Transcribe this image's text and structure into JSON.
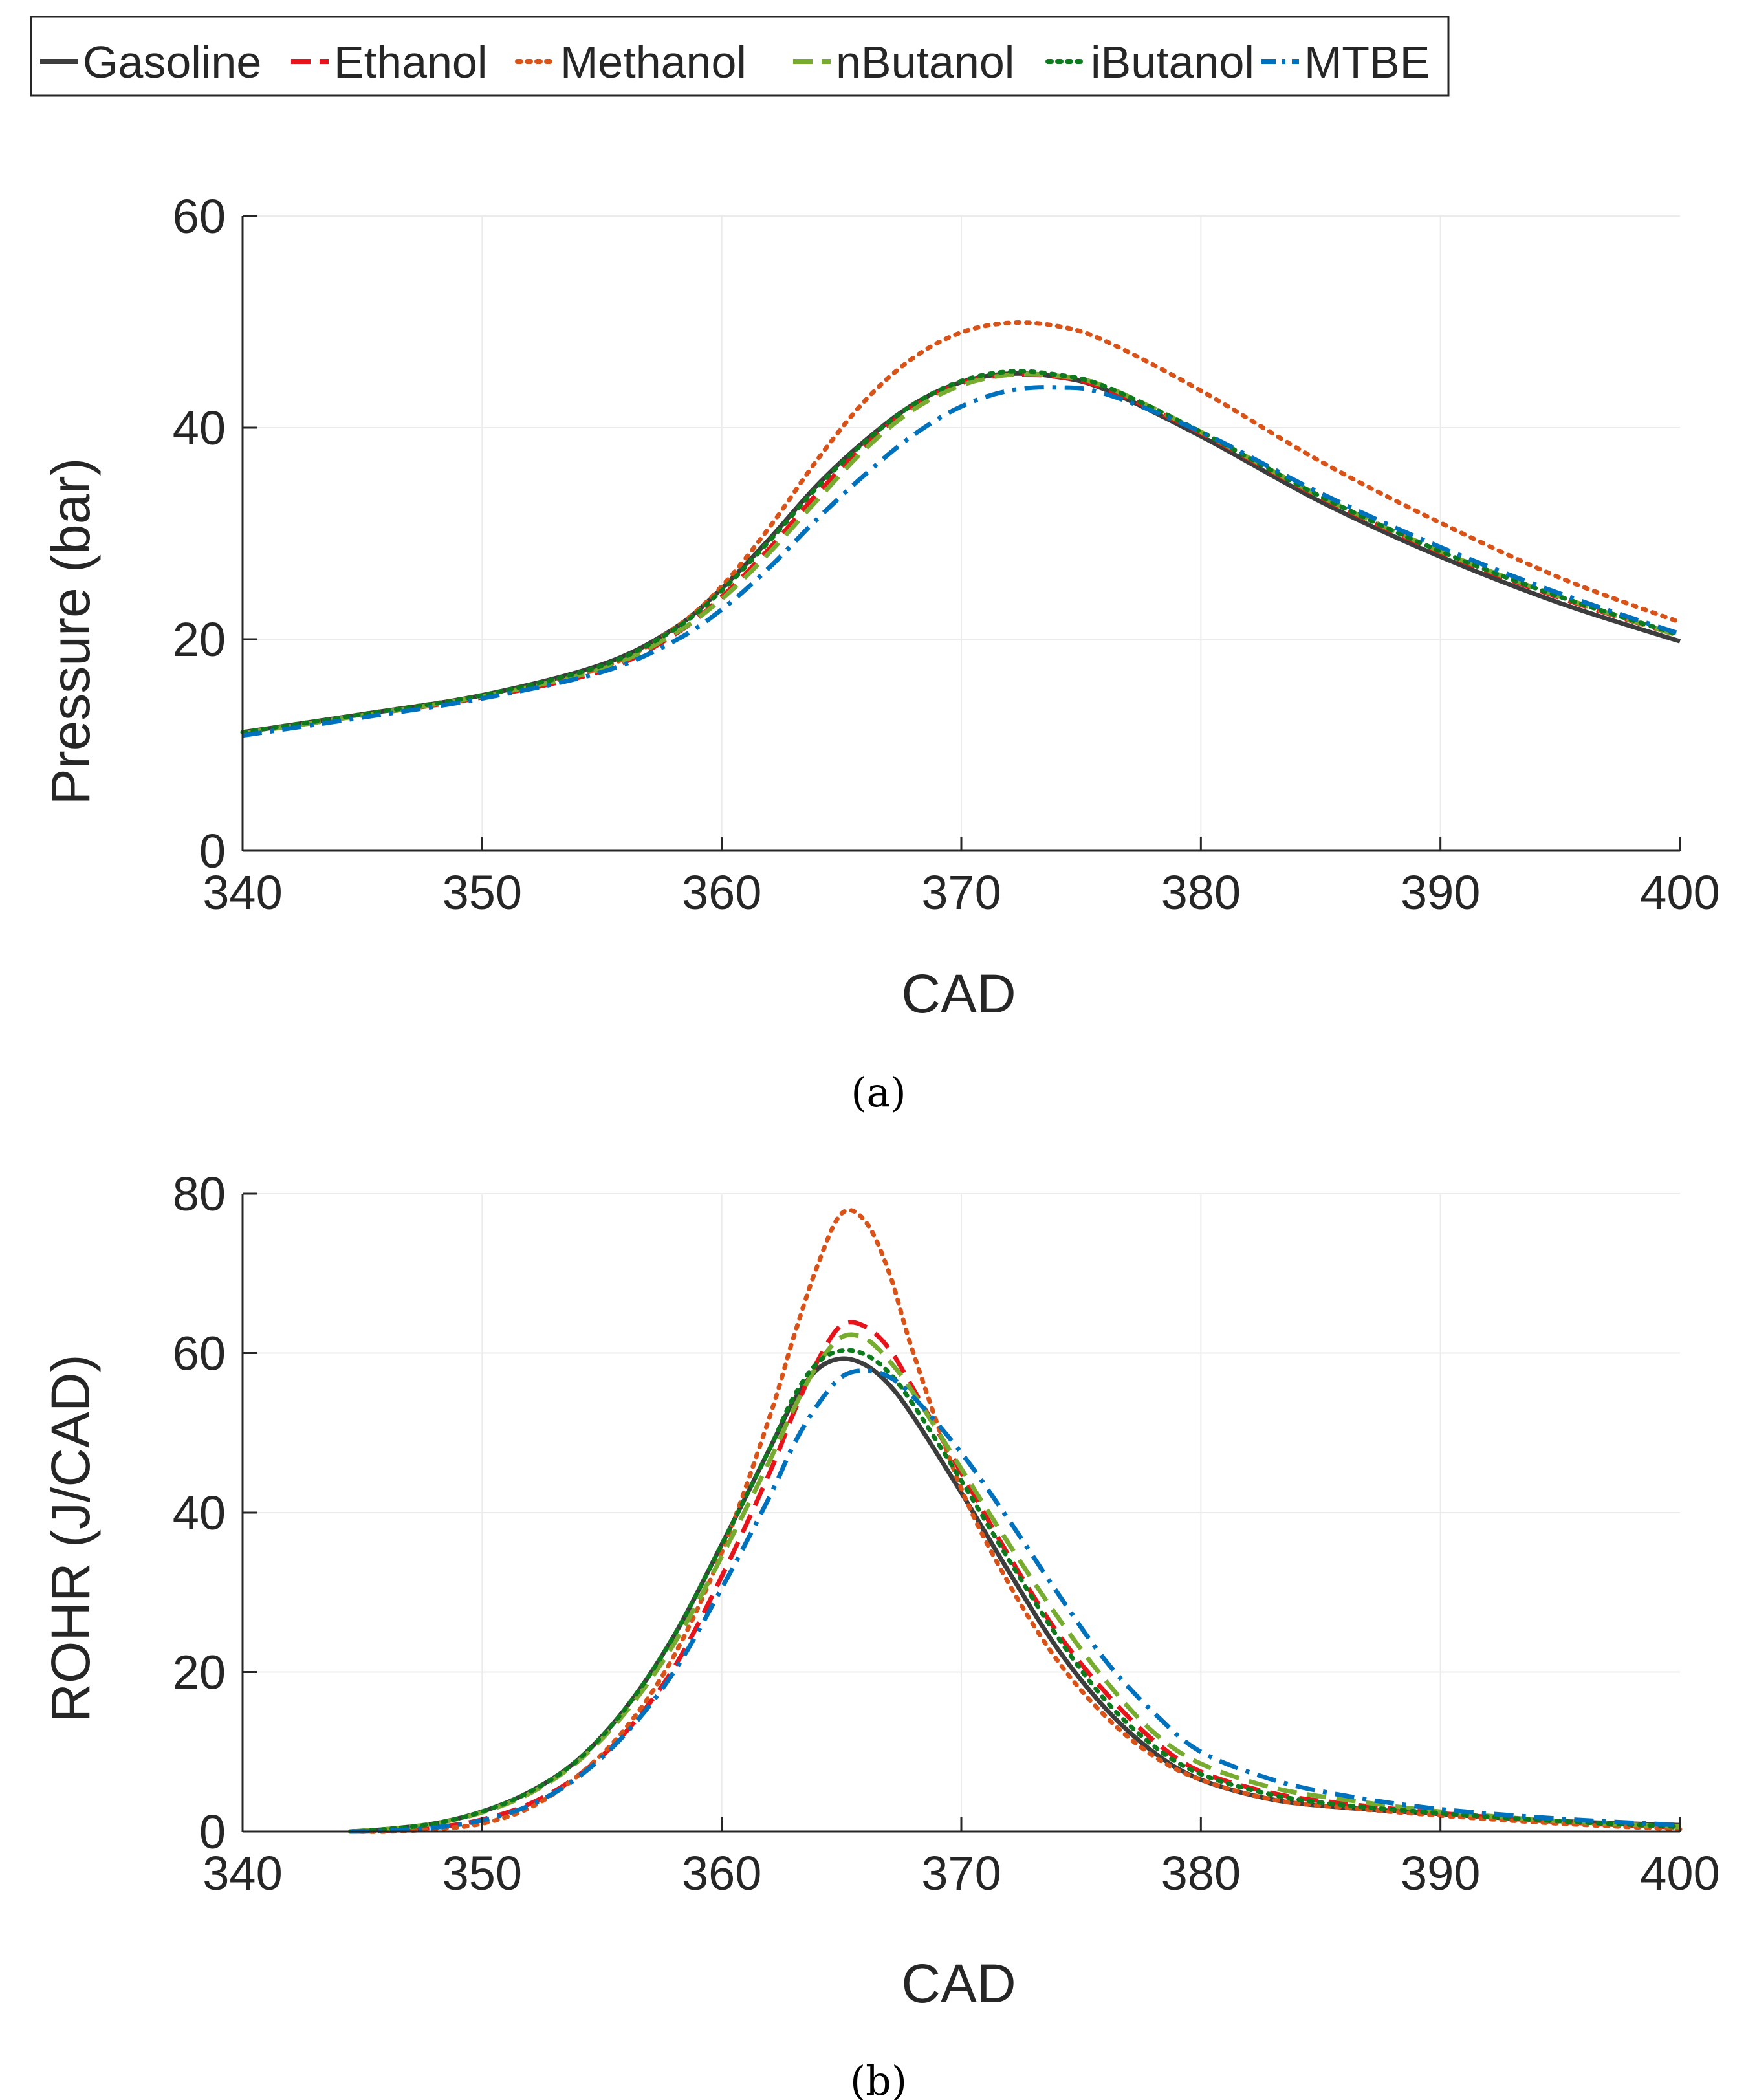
{
  "legend": {
    "entries": [
      {
        "name": "Gasoline",
        "color": "#3d3d3d",
        "dash": "solid"
      },
      {
        "name": "Ethanol",
        "color": "#e8141b",
        "dash": "dashed"
      },
      {
        "name": "Methanol",
        "color": "#d95319",
        "dash": "dotted"
      },
      {
        "name": "nButanol",
        "color": "#77ac30",
        "dash": "dashed"
      },
      {
        "name": "iButanol",
        "color": "#0e7a1e",
        "dash": "dotted"
      },
      {
        "name": "MTBE",
        "color": "#0072bd",
        "dash": "dashdot"
      }
    ]
  },
  "chart_data": [
    {
      "type": "line",
      "caption": "(a)",
      "title": "",
      "xlabel": "CAD",
      "ylabel": "Pressure (bar)",
      "xlim": [
        340,
        400
      ],
      "ylim": [
        0,
        60
      ],
      "xticks": [
        340,
        350,
        360,
        370,
        380,
        390,
        400
      ],
      "yticks": [
        0,
        20,
        40,
        60
      ],
      "grid": true,
      "x": [
        340,
        345,
        350,
        355,
        358,
        360,
        362,
        364,
        366,
        368,
        370,
        372,
        374,
        376,
        380,
        385,
        390,
        395,
        400
      ],
      "series": [
        {
          "name": "Gasoline",
          "values": [
            11.2,
            12.9,
            14.7,
            17.6,
            21.0,
            24.8,
            29.5,
            34.6,
            38.8,
            42.2,
            44.3,
            45.1,
            44.8,
            43.6,
            39.2,
            33.0,
            27.8,
            23.4,
            19.8
          ]
        },
        {
          "name": "Ethanol",
          "values": [
            11.1,
            12.8,
            14.5,
            17.0,
            20.4,
            24.0,
            28.6,
            33.8,
            38.4,
            42.0,
            44.2,
            45.0,
            44.8,
            43.7,
            39.5,
            33.4,
            28.2,
            23.9,
            20.3
          ]
        },
        {
          "name": "Methanol",
          "values": [
            11.2,
            12.9,
            14.7,
            17.3,
            21.0,
            25.0,
            30.6,
            37.0,
            42.6,
            46.6,
            49.0,
            49.9,
            49.6,
            48.2,
            43.5,
            36.8,
            31.0,
            25.8,
            21.6
          ]
        },
        {
          "name": "nButanol",
          "values": [
            11.1,
            12.8,
            14.6,
            17.2,
            20.5,
            23.8,
            28.2,
            33.2,
            38.0,
            41.7,
            44.0,
            45.0,
            44.9,
            43.9,
            39.6,
            33.5,
            28.3,
            24.0,
            20.3
          ]
        },
        {
          "name": "iButanol",
          "values": [
            11.2,
            12.9,
            14.7,
            17.5,
            20.9,
            24.6,
            29.3,
            34.4,
            38.7,
            42.2,
            44.4,
            45.3,
            45.0,
            43.9,
            39.6,
            33.5,
            28.3,
            24.0,
            20.4
          ]
        },
        {
          "name": "MTBE",
          "values": [
            10.9,
            12.6,
            14.4,
            16.9,
            19.8,
            22.8,
            26.8,
            31.4,
            35.6,
            39.3,
            42.0,
            43.5,
            43.8,
            43.2,
            39.6,
            33.8,
            28.7,
            24.3,
            20.5
          ]
        }
      ]
    },
    {
      "type": "line",
      "caption": "(b)",
      "title": "",
      "xlabel": "CAD",
      "ylabel": "ROHR (J/CAD)",
      "xlim": [
        340,
        400
      ],
      "ylim": [
        0,
        80
      ],
      "xticks": [
        340,
        350,
        360,
        370,
        380,
        390,
        400
      ],
      "yticks": [
        0,
        20,
        40,
        60,
        80
      ],
      "grid": true,
      "x": [
        344.5,
        346,
        348,
        350,
        352,
        354,
        356,
        358,
        360,
        362,
        363,
        364,
        365,
        366,
        367,
        368,
        370,
        372,
        374,
        376,
        378,
        380,
        383,
        386,
        390,
        395,
        400
      ],
      "series": [
        {
          "name": "Gasoline",
          "values": [
            0,
            0.3,
            1.0,
            2.5,
            5.0,
            9.0,
            15.5,
            24.5,
            36.0,
            48.0,
            54.0,
            58.0,
            59.3,
            58.5,
            56.0,
            52.0,
            42.5,
            32.5,
            23.0,
            15.5,
            10.0,
            6.5,
            4.0,
            3.0,
            2.2,
            1.3,
            0.8
          ]
        },
        {
          "name": "Ethanol",
          "values": [
            0,
            0.1,
            0.5,
            1.5,
            3.5,
            7.0,
            12.5,
            20.5,
            32.0,
            45.0,
            52.5,
            59.0,
            63.5,
            63.3,
            60.5,
            55.5,
            45.0,
            34.5,
            25.0,
            17.5,
            11.5,
            7.5,
            4.8,
            3.5,
            2.3,
            1.2,
            0.5
          ]
        },
        {
          "name": "Methanol",
          "values": [
            0,
            0.0,
            0.3,
            1.0,
            3.0,
            7.0,
            13.0,
            22.0,
            35.0,
            52.0,
            62.0,
            71.0,
            77.5,
            76.5,
            70.0,
            60.0,
            43.0,
            31.0,
            21.5,
            14.5,
            9.5,
            6.5,
            4.0,
            3.0,
            2.0,
            1.0,
            0.3
          ]
        },
        {
          "name": "nButanol",
          "values": [
            0,
            0.3,
            1.0,
            2.4,
            4.8,
            8.8,
            15.0,
            23.5,
            34.5,
            46.5,
            53.0,
            58.5,
            62.0,
            61.8,
            59.0,
            55.0,
            45.5,
            36.0,
            27.0,
            19.0,
            12.5,
            8.5,
            5.5,
            4.0,
            2.5,
            1.3,
            0.6
          ]
        },
        {
          "name": "iButanol",
          "values": [
            0,
            0.3,
            1.0,
            2.5,
            5.0,
            9.0,
            15.5,
            24.5,
            36.0,
            48.0,
            54.5,
            58.8,
            60.3,
            59.8,
            57.5,
            53.5,
            44.0,
            34.0,
            24.5,
            16.5,
            10.8,
            7.2,
            4.6,
            3.3,
            2.3,
            1.3,
            0.6
          ]
        },
        {
          "name": "MTBE",
          "values": [
            0,
            0.1,
            0.5,
            1.4,
            3.3,
            6.8,
            12.3,
            20.0,
            30.5,
            42.0,
            48.5,
            53.5,
            57.0,
            57.8,
            57.0,
            54.5,
            47.5,
            39.0,
            30.0,
            21.5,
            15.0,
            10.0,
            6.5,
            4.5,
            2.8,
            1.6,
            0.8
          ]
        }
      ]
    }
  ]
}
